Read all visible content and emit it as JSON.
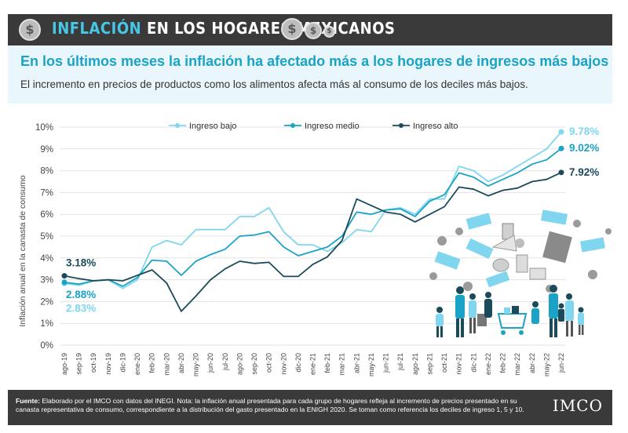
{
  "header": {
    "title_highlight": "INFLACIÓN",
    "title_rest": "EN LOS HOGARES MEXICANOS",
    "coin_symbol": "$"
  },
  "subheader": {
    "headline": "En los últimos meses la inflación ha afectado más a los hogares de ingresos más bajos",
    "subline": "El incremento en precios de productos como los alimentos afecta más al consumo de los deciles más bajos."
  },
  "colors": {
    "low": "#7fd6ee",
    "medium": "#1aa3c6",
    "high": "#1b4a5a",
    "banner": "#3a3a3a",
    "accent": "#47c7e6"
  },
  "chart_data": {
    "type": "line",
    "title": "",
    "xlabel": "",
    "ylabel": "Inflación anual en la canasta de consumo",
    "ylim": [
      0,
      10
    ],
    "y_ticks": [
      "0%",
      "1%",
      "2%",
      "3%",
      "4%",
      "5%",
      "6%",
      "7%",
      "8%",
      "9%",
      "10%"
    ],
    "grid": true,
    "legend_position": "top",
    "categories": [
      "ago-19",
      "sep-19",
      "oct-19",
      "nov-19",
      "dic-19",
      "ene-20",
      "feb-20",
      "mar-20",
      "abr-20",
      "may-20",
      "jun-20",
      "jul-20",
      "ago-20",
      "sep-20",
      "oct-20",
      "nov-20",
      "dic-20",
      "ene-21",
      "feb-21",
      "mar-21",
      "abr-21",
      "may-21",
      "jun-21",
      "jul-21",
      "ago-21",
      "sep-21",
      "oct-21",
      "nov-21",
      "dic-21",
      "ene-22",
      "feb-22",
      "mar-22",
      "abr-22",
      "may-22",
      "jun-22"
    ],
    "series": [
      {
        "name": "Ingreso bajo",
        "color": "#7fd6ee",
        "start_label": "2.83%",
        "end_label": "9.78%",
        "values": [
          2.83,
          2.75,
          2.95,
          3.0,
          2.6,
          3.0,
          4.5,
          4.8,
          4.6,
          5.3,
          5.3,
          5.3,
          5.9,
          5.9,
          6.3,
          5.2,
          4.6,
          4.6,
          4.3,
          4.7,
          5.3,
          5.2,
          6.2,
          6.3,
          6.0,
          6.7,
          6.7,
          8.2,
          8.0,
          7.5,
          7.8,
          8.2,
          8.6,
          9.0,
          9.78
        ]
      },
      {
        "name": "Ingreso medio",
        "color": "#1aa3c6",
        "start_label": "2.88%",
        "end_label": "9.02%",
        "values": [
          2.88,
          2.8,
          2.95,
          3.0,
          2.7,
          3.1,
          3.9,
          3.85,
          3.2,
          3.85,
          4.15,
          4.4,
          5.0,
          5.05,
          5.2,
          4.5,
          4.1,
          4.3,
          4.5,
          5.0,
          6.1,
          6.0,
          6.2,
          6.25,
          5.9,
          6.6,
          6.9,
          7.9,
          7.7,
          7.3,
          7.6,
          7.9,
          8.3,
          8.5,
          9.02
        ]
      },
      {
        "name": "Ingreso alto",
        "color": "#1b4a5a",
        "start_label": "3.18%",
        "end_label": "7.92%",
        "values": [
          3.18,
          3.05,
          2.95,
          3.0,
          2.95,
          3.2,
          3.45,
          2.85,
          1.55,
          2.25,
          3.0,
          3.5,
          3.85,
          3.75,
          3.8,
          3.15,
          3.15,
          3.7,
          4.05,
          4.8,
          6.7,
          6.4,
          6.1,
          6.0,
          5.65,
          6.0,
          6.35,
          7.25,
          7.15,
          6.85,
          7.1,
          7.2,
          7.5,
          7.6,
          7.92
        ]
      }
    ]
  },
  "footer": {
    "source_label": "Fuente:",
    "text": " Elaborado por el IMCO con datos del INEGI. Nota: la inflación anual presentada para cada grupo de hogares refleja al incremento de precios presentado en su canasta representativa de consumo, correspondiente a la distribución del gasto presentado en la ENIGH 2020. Se toman como referencia los deciles de ingreso 1, 5 y 10.",
    "logo": "IMCO"
  }
}
